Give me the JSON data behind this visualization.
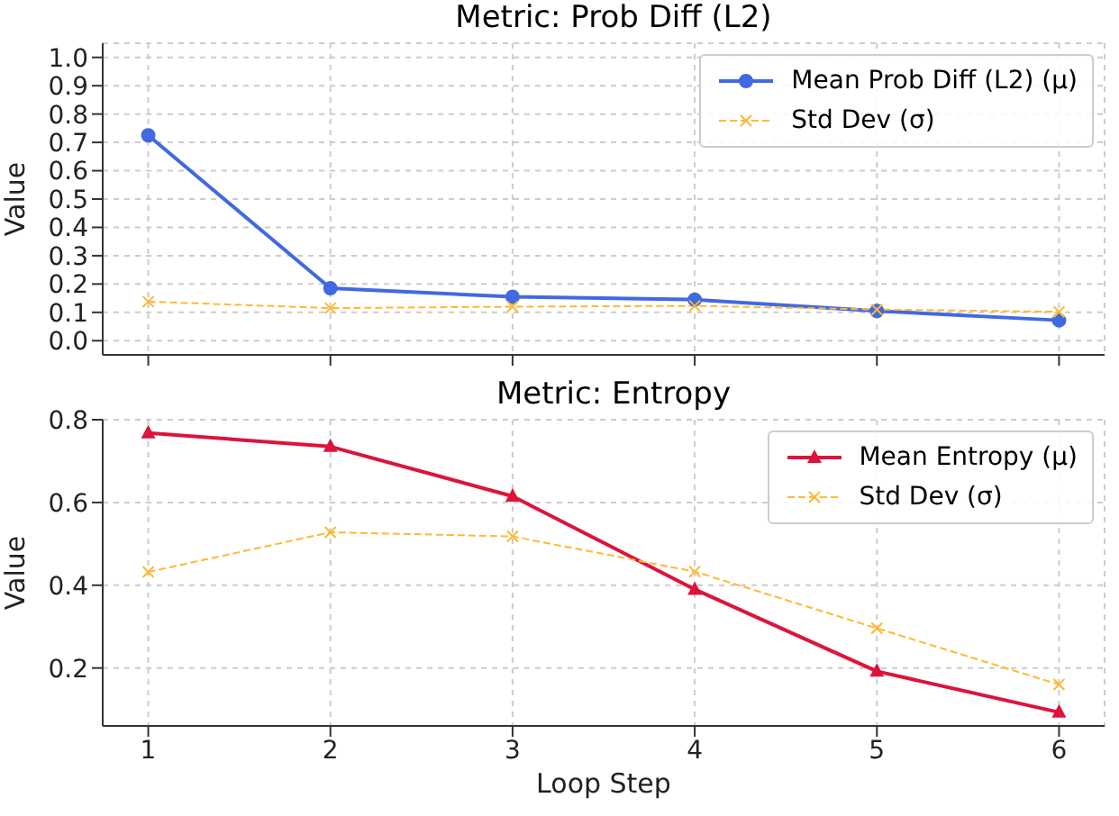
{
  "chart_data": [
    {
      "type": "line",
      "title": "Metric: Prob Diff (L2)",
      "ylabel": "Value",
      "x": [
        1,
        2,
        3,
        4,
        5,
        6
      ],
      "xlim": [
        0.75,
        6.25
      ],
      "xticks": [
        1,
        2,
        3,
        4,
        5,
        6
      ],
      "ylim": [
        -0.05,
        1.05
      ],
      "yticks": [
        {
          "value": 0,
          "label": "0.0"
        },
        0.1,
        0.2,
        0.3,
        0.4,
        0.5,
        0.6,
        0.7,
        0.8,
        0.9,
        {
          "value": 1,
          "label": "1.0"
        }
      ],
      "tick_labels": "y",
      "grid": true,
      "legend": "top right",
      "series": [
        {
          "name": "Mean Prob Diff (L2) (μ)",
          "color": "#4169e1",
          "marker": "circle",
          "line_style": "solid",
          "values": [
            0.725,
            0.185,
            0.155,
            0.145,
            0.105,
            0.072
          ]
        },
        {
          "name": "Std Dev (σ)",
          "color": "#ffb833",
          "marker": "cross",
          "line_style": "dashed",
          "values": [
            0.138,
            0.115,
            0.12,
            0.123,
            0.11,
            0.102
          ]
        }
      ]
    },
    {
      "type": "line",
      "title": "Metric: Entropy",
      "xlabel": "Loop Step",
      "ylabel": "Value",
      "x": [
        1,
        2,
        3,
        4,
        5,
        6
      ],
      "xlim": [
        0.75,
        6.25
      ],
      "xticks": [
        1,
        2,
        3,
        4,
        5,
        6
      ],
      "ylim": [
        0.06,
        0.8
      ],
      "yticks": [
        0.2,
        0.4,
        0.6,
        0.8
      ],
      "grid": true,
      "legend": "top right",
      "series": [
        {
          "name": "Mean Entropy (μ)",
          "color": "#dc143c",
          "marker": "triangle",
          "line_style": "solid",
          "values": [
            0.768,
            0.735,
            0.615,
            0.39,
            0.192,
            0.093
          ]
        },
        {
          "name": "Std Dev (σ)",
          "color": "#ffb833",
          "marker": "cross",
          "line_style": "dashed",
          "values": [
            0.432,
            0.528,
            0.518,
            0.433,
            0.296,
            0.16
          ]
        }
      ]
    }
  ]
}
